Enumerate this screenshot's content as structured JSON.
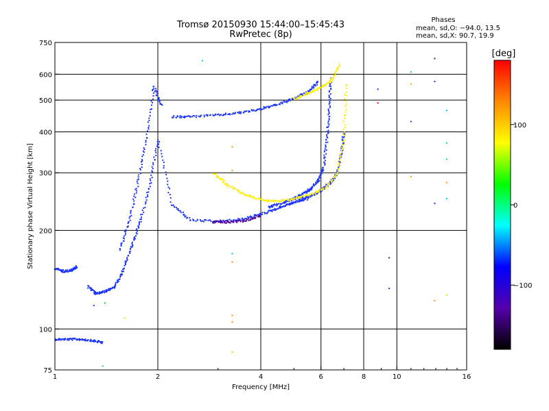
{
  "chart_data": {
    "type": "scatter",
    "title": "Tromsø 20150930 15:44:00–15:45:43",
    "subtitle": "RwPretec (8p)",
    "xlabel": "Frequency [MHz]",
    "ylabel": "Stationary phase Virtual Height [km]",
    "x_scale": "log",
    "y_scale": "log",
    "xlim": [
      1,
      16
    ],
    "ylim": [
      75,
      750
    ],
    "x_ticks": [
      1,
      2,
      4,
      6,
      8,
      10,
      16
    ],
    "x_tick_labels": [
      "1",
      "2",
      "4",
      "6",
      "8",
      "10",
      "16"
    ],
    "y_ticks": [
      75,
      100,
      200,
      300,
      400,
      500,
      600,
      750
    ],
    "y_tick_labels": [
      "75",
      "100",
      "200",
      "300",
      "400",
      "500",
      "600",
      "750"
    ],
    "x_grid": [
      2,
      4,
      6,
      8,
      10
    ],
    "y_grid": [
      100,
      200,
      300,
      400,
      500,
      600
    ],
    "grid": true,
    "stats": {
      "heading": "Phases",
      "line_o": "mean, sd,O: −94.0, 13.5",
      "line_x": "mean, sd,X:  90.7, 19.9"
    },
    "colorbar": {
      "label": "[deg]",
      "range": [
        -180,
        180
      ],
      "ticks": [
        100,
        0,
        -100
      ],
      "tick_labels": [
        "100",
        "0",
        "−100"
      ],
      "colors": [
        "#ff0000",
        "#ff8800",
        "#ffff00",
        "#00ff00",
        "#00ffff",
        "#0000ff",
        "#5500aa",
        "#000000"
      ]
    },
    "series": [
      {
        "phase_deg": -100,
        "color": "#1a33ff",
        "traces": [
          {
            "x": [
              1.0,
              1.1,
              1.2,
              1.3,
              1.38
            ],
            "y": [
              93,
              93,
              93,
              92,
              91
            ]
          },
          {
            "x": [
              1.0,
              1.06,
              1.12,
              1.16
            ],
            "y": [
              153,
              150,
              151,
              155
            ]
          },
          {
            "x": [
              1.25,
              1.32,
              1.4,
              1.5,
              1.58,
              1.68,
              1.78,
              1.9,
              2.0,
              2.2,
              2.5,
              3.0,
              3.5,
              4.0,
              4.4,
              4.8,
              5.1,
              5.5
            ],
            "y": [
              135,
              128,
              130,
              135,
              150,
              180,
              215,
              280,
              380,
              240,
              215,
              213,
              216,
              224,
              232,
              240,
              245,
              250
            ]
          },
          {
            "x": [
              1.55,
              1.65,
              1.75,
              1.85,
              1.95,
              2.05
            ],
            "y": [
              175,
              215,
              280,
              380,
              550,
              480
            ]
          },
          {
            "x": [
              2.2,
              2.5,
              3.0,
              3.5,
              4.0,
              4.5,
              5.0,
              5.5,
              5.9
            ],
            "y": [
              445,
              445,
              450,
              458,
              470,
              485,
              505,
              530,
              570
            ]
          },
          {
            "x": [
              4.2,
              4.6,
              5.0,
              5.3,
              5.6,
              5.9,
              6.1,
              6.25,
              6.35,
              6.4
            ],
            "y": [
              235,
              242,
              250,
              258,
              268,
              285,
              310,
              380,
              470,
              580
            ]
          },
          {
            "x": [
              5.2,
              5.6,
              6.0,
              6.4,
              6.7,
              6.9,
              7.0
            ],
            "y": [
              250,
              255,
              265,
              280,
              300,
              350,
              400
            ]
          }
        ]
      },
      {
        "phase_deg": 100,
        "color": "#ffee00",
        "traces": [
          {
            "x": [
              2.9,
              3.2,
              3.6,
              4.0,
              4.5
            ],
            "y": [
              300,
              275,
              258,
              248,
              245
            ]
          },
          {
            "x": [
              4.5,
              5.0,
              5.6,
              6.2,
              6.7,
              7.0,
              7.1
            ],
            "y": [
              245,
              250,
              258,
              270,
              300,
              380,
              560
            ]
          },
          {
            "x": [
              5.0,
              5.5,
              6.0,
              6.4,
              6.8
            ],
            "y": [
              505,
              525,
              545,
              570,
              640
            ]
          }
        ]
      },
      {
        "phase_deg": -150,
        "color": "#5000a0",
        "traces": [
          {
            "x": [
              2.9,
              3.2,
              3.6,
              4.0
            ],
            "y": [
              212,
              212,
              214,
              222
            ]
          }
        ]
      }
    ],
    "scattered_points": [
      {
        "x": 2.7,
        "y": 660,
        "phase": "cyan"
      },
      {
        "x": 3.3,
        "y": 360,
        "phase": "orange"
      },
      {
        "x": 3.3,
        "y": 305,
        "phase": "orange"
      },
      {
        "x": 3.3,
        "y": 170,
        "phase": "cyan"
      },
      {
        "x": 3.3,
        "y": 160,
        "phase": "orange"
      },
      {
        "x": 3.3,
        "y": 110,
        "phase": "orange"
      },
      {
        "x": 3.3,
        "y": 105,
        "phase": "orange"
      },
      {
        "x": 3.3,
        "y": 85,
        "phase": "yellow"
      },
      {
        "x": 8.8,
        "y": 540,
        "phase": "blue"
      },
      {
        "x": 8.8,
        "y": 490,
        "phase": "red"
      },
      {
        "x": 9.5,
        "y": 165,
        "phase": "purple"
      },
      {
        "x": 9.5,
        "y": 133,
        "phase": "blue"
      },
      {
        "x": 11.0,
        "y": 610,
        "phase": "cyan"
      },
      {
        "x": 11.0,
        "y": 560,
        "phase": "orange"
      },
      {
        "x": 11.0,
        "y": 430,
        "phase": "blue"
      },
      {
        "x": 11.0,
        "y": 292,
        "phase": "orange"
      },
      {
        "x": 12.9,
        "y": 670,
        "phase": "purple"
      },
      {
        "x": 12.9,
        "y": 570,
        "phase": "blue"
      },
      {
        "x": 12.9,
        "y": 242,
        "phase": "blue"
      },
      {
        "x": 12.9,
        "y": 122,
        "phase": "orange"
      },
      {
        "x": 14.0,
        "y": 465,
        "phase": "cyan"
      },
      {
        "x": 14.0,
        "y": 370,
        "phase": "cyan"
      },
      {
        "x": 14.0,
        "y": 330,
        "phase": "cyan"
      },
      {
        "x": 14.0,
        "y": 280,
        "phase": "orange"
      },
      {
        "x": 14.0,
        "y": 250,
        "phase": "cyan"
      },
      {
        "x": 14.0,
        "y": 127,
        "phase": "yellow"
      },
      {
        "x": 1.38,
        "y": 77,
        "phase": "cyan"
      },
      {
        "x": 1.3,
        "y": 118,
        "phase": "blue"
      },
      {
        "x": 1.4,
        "y": 120,
        "phase": "green"
      },
      {
        "x": 1.6,
        "y": 108,
        "phase": "yellow"
      }
    ]
  }
}
